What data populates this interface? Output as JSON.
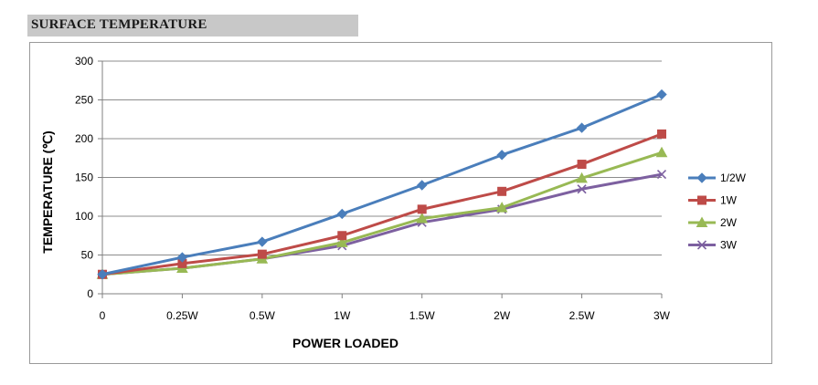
{
  "header": {
    "title": "SURFACE TEMPERATURE"
  },
  "chart_data": {
    "type": "line",
    "xlabel": "POWER LOADED",
    "ylabel": "TEMPERATURE (℃)",
    "categories": [
      "0",
      "0.25W",
      "0.5W",
      "1W",
      "1.5W",
      "2W",
      "2.5W",
      "3W"
    ],
    "yticks": [
      "0",
      "50",
      "100",
      "150",
      "200",
      "250",
      "300"
    ],
    "ylim": [
      0,
      300
    ],
    "grid": true,
    "legend_position": "right",
    "series": [
      {
        "name": "1/2W",
        "color": "#4a7ebb",
        "marker": "diamond",
        "values": [
          25,
          47,
          67,
          103,
          140,
          179,
          214,
          257
        ]
      },
      {
        "name": "1W",
        "color": "#be4b48",
        "marker": "square",
        "values": [
          25,
          39,
          51,
          75,
          109,
          132,
          167,
          206
        ]
      },
      {
        "name": "2W",
        "color": "#98b954",
        "marker": "triangle",
        "values": [
          25,
          33,
          45,
          66,
          97,
          111,
          149,
          182
        ]
      },
      {
        "name": "3W",
        "color": "#7d60a0",
        "marker": "x",
        "values": [
          25,
          33,
          45,
          62,
          92,
          109,
          135,
          154
        ]
      }
    ]
  }
}
